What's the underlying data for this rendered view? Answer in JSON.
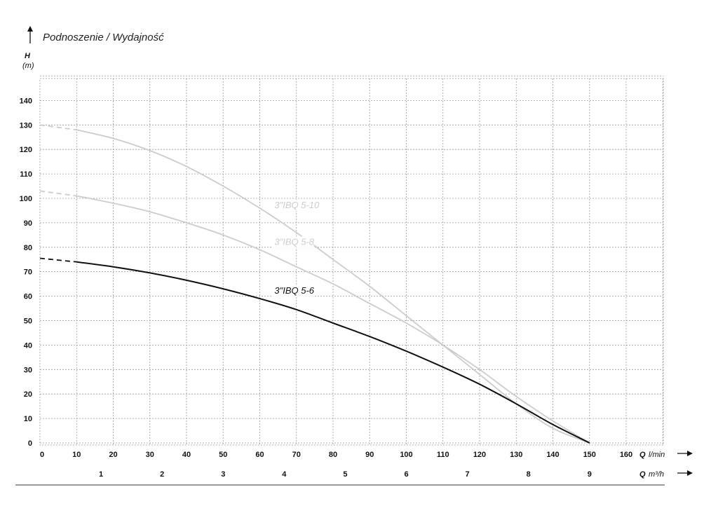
{
  "chart_data": {
    "type": "line",
    "title": "Podnoszenie / Wydajność",
    "ylabel_symbol": "H",
    "ylabel_unit": "(m)",
    "xlabel_symbol": "Q",
    "xlabel_unit": "l/min",
    "x2label_symbol": "Q",
    "x2label_unit": "m³/h",
    "xlim": [
      0,
      170
    ],
    "ylim": [
      0,
      150
    ],
    "x_ticks": [
      0,
      10,
      20,
      30,
      40,
      50,
      60,
      70,
      80,
      90,
      100,
      110,
      120,
      130,
      140,
      150,
      160
    ],
    "y_ticks": [
      0,
      10,
      20,
      30,
      40,
      50,
      60,
      70,
      80,
      90,
      100,
      110,
      120,
      130,
      140
    ],
    "x2_ticks": [
      1,
      2,
      3,
      4,
      5,
      6,
      7,
      8,
      9
    ],
    "grid": true,
    "series": [
      {
        "name": "3\"IBQ 5-10",
        "color": "#cccccc",
        "x": [
          0,
          10,
          20,
          30,
          40,
          50,
          60,
          70,
          80,
          90,
          100,
          110,
          120,
          130,
          140,
          150
        ],
        "y": [
          130,
          128,
          124.5,
          119.5,
          113,
          105,
          96,
          86,
          75,
          64,
          52,
          40,
          28,
          16,
          6,
          0
        ]
      },
      {
        "name": "3\"IBQ 5-8",
        "color": "#cccccc",
        "x": [
          0,
          10,
          20,
          30,
          40,
          50,
          60,
          70,
          80,
          90,
          100,
          110,
          120,
          130,
          140,
          150
        ],
        "y": [
          103,
          101,
          98,
          94.5,
          90,
          85,
          79,
          72,
          65,
          57,
          49,
          40,
          30,
          19,
          9,
          0
        ]
      },
      {
        "name": "3\"IBQ 5-6",
        "color": "#111111",
        "x": [
          0,
          10,
          20,
          30,
          40,
          50,
          60,
          70,
          80,
          90,
          100,
          110,
          120,
          130,
          140,
          150
        ],
        "y": [
          75.5,
          74,
          72,
          69.5,
          66.5,
          63,
          59,
          54.5,
          49,
          43.5,
          37.5,
          31,
          24,
          16,
          7.5,
          0
        ]
      }
    ]
  }
}
